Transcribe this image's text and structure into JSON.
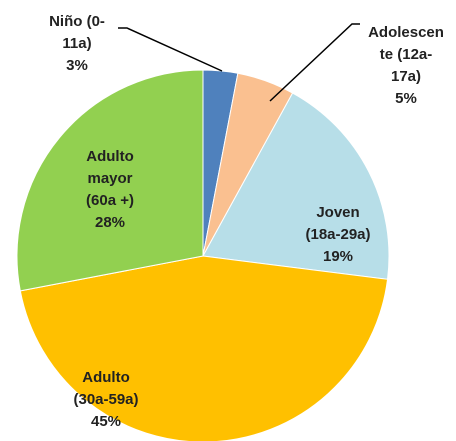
{
  "chart_data": {
    "type": "pie",
    "categories": [
      "Niño (0-\n11a)",
      "Adolescen\nte (12a-\n17a)",
      "Joven\n(18a-29a)",
      "Adulto\n(30a-59a)",
      "Adulto\nmayor\n(60a +)"
    ],
    "values": [
      3,
      5,
      19,
      45,
      28
    ],
    "value_labels": [
      "3%",
      "5%",
      "19%",
      "45%",
      "28%"
    ],
    "colors": [
      "#4f81bd",
      "#fac090",
      "#b7dee8",
      "#ffc000",
      "#92d050"
    ]
  }
}
